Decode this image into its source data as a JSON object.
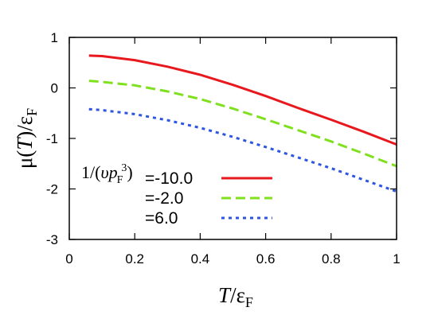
{
  "chart_data": {
    "type": "line",
    "xlabel_main": "T",
    "xlabel_rest": "/ε",
    "xlabel_sub": "F",
    "ylabel_main": "μ(",
    "ylabel_T": "T",
    "ylabel_rest": ")/ε",
    "ylabel_sub": "F",
    "xlim": [
      0,
      1
    ],
    "ylim": [
      -3,
      1
    ],
    "xticks": [
      "0",
      "0.2",
      "0.4",
      "0.6",
      "0.8",
      "1"
    ],
    "yticks": [
      "-3",
      "-2",
      "-1",
      "0",
      "1"
    ],
    "legend_placement": "lower-left",
    "legend_title": {
      "prefix": "1/(",
      "var_v": "υ",
      "var_p": "p",
      "sub": "F",
      "sup": "3",
      "suffix": ")"
    },
    "x": [
      0.06,
      0.1,
      0.2,
      0.3,
      0.4,
      0.5,
      0.6,
      0.7,
      0.8,
      0.9,
      1.0
    ],
    "series": [
      {
        "name": "=-10.0",
        "color": "#e8191e",
        "dash": "solid",
        "values": [
          0.64,
          0.63,
          0.55,
          0.42,
          0.26,
          0.06,
          -0.16,
          -0.4,
          -0.63,
          -0.87,
          -1.12
        ]
      },
      {
        "name": "=-2.0",
        "color": "#7fe01e",
        "dash": "dashed",
        "values": [
          0.14,
          0.12,
          0.05,
          -0.07,
          -0.22,
          -0.41,
          -0.62,
          -0.84,
          -1.06,
          -1.3,
          -1.55
        ]
      },
      {
        "name": "=6.0",
        "color": "#2d55e0",
        "dash": "dotted",
        "values": [
          -0.42,
          -0.44,
          -0.52,
          -0.64,
          -0.79,
          -0.97,
          -1.17,
          -1.38,
          -1.59,
          -1.82,
          -2.05
        ]
      }
    ]
  }
}
